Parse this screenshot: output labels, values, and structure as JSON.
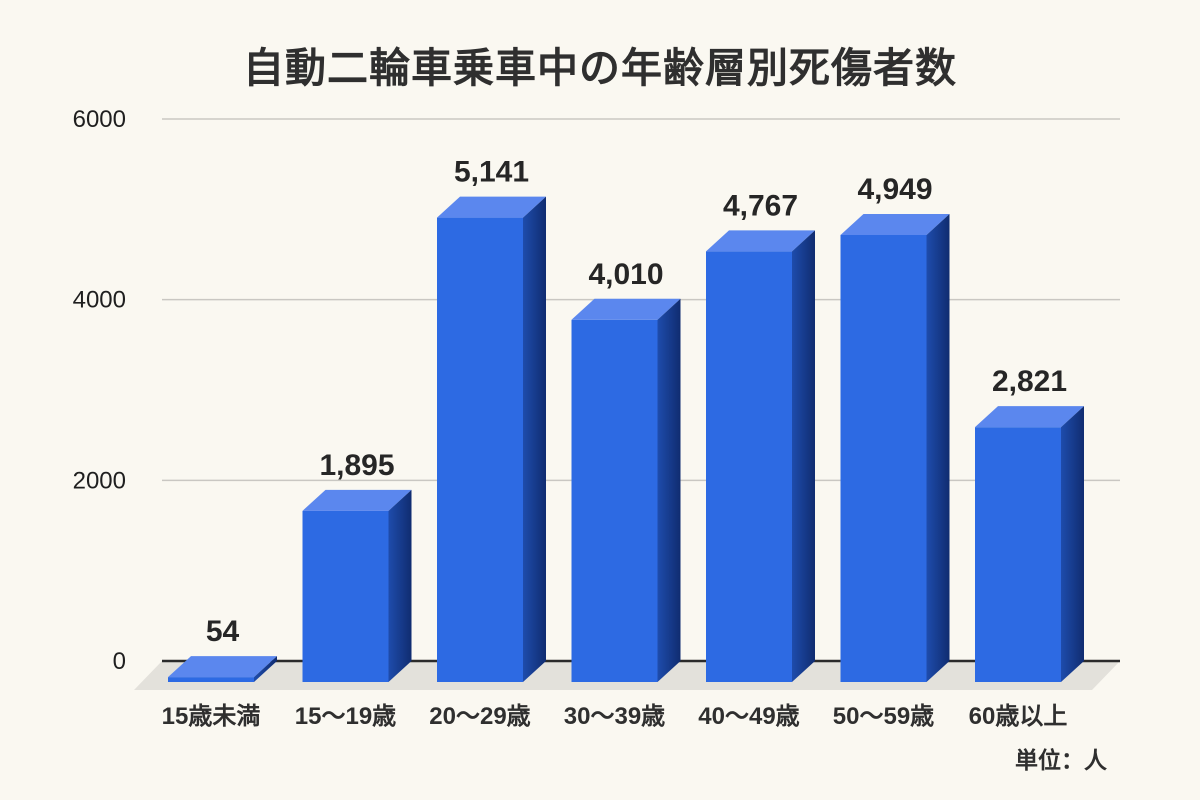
{
  "chart_data": {
    "type": "bar",
    "style": "3d-bars",
    "title": "自動二輪車乗車中の年齢層別死傷者数",
    "unit_note": "単位：人",
    "categories": [
      "15歳未満",
      "15〜19歳",
      "20〜29歳",
      "30〜39歳",
      "40〜49歳",
      "50〜59歳",
      "60歳以上"
    ],
    "values": [
      54,
      1895,
      5141,
      4010,
      4767,
      4949,
      2821
    ],
    "value_labels": [
      "54",
      "1,895",
      "5,141",
      "4,010",
      "4,767",
      "4,949",
      "2,821"
    ],
    "xlabel": "",
    "ylabel": "",
    "ylim": [
      0,
      6000
    ],
    "yticks": [
      0,
      2000,
      4000,
      6000
    ],
    "ytick_labels": [
      "0",
      "2000",
      "4000",
      "6000"
    ],
    "grid": true,
    "legend": "none",
    "colors": {
      "background": "#faf8f1",
      "bar_front": "#2d6ae3",
      "bar_top": "#5b87ee",
      "bar_side_light": "#1e4cac",
      "bar_side_dark": "#102c70",
      "floor_shadow": "#e3e1db",
      "gridline": "#c9c7c2",
      "axis_line": "#2b2b2b",
      "title_text": "#2f2f2f",
      "label_text": "#262626"
    }
  }
}
